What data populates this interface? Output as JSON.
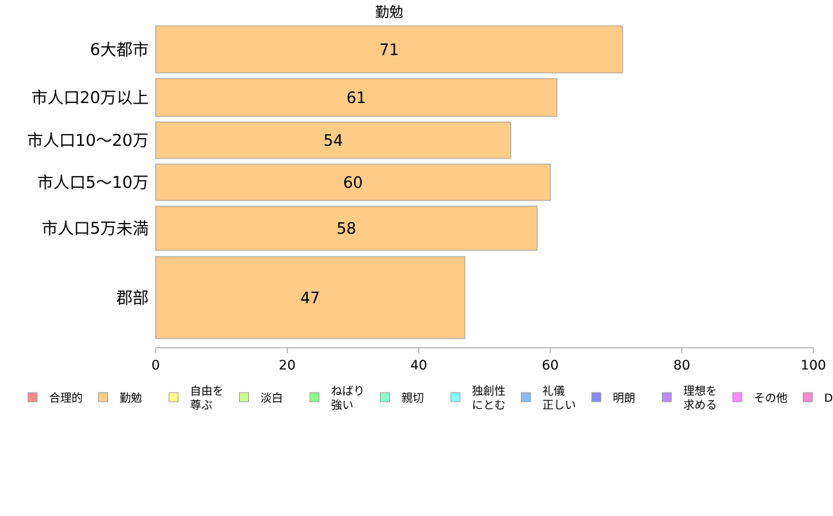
{
  "chart_data": {
    "type": "bar",
    "orientation": "horizontal",
    "title": "勤勉",
    "categories": [
      "6大都市",
      "市人口20万以上",
      "市人口10〜20万",
      "市人口5〜10万",
      "市人口5万未満",
      "郡部"
    ],
    "values": [
      71,
      61,
      54,
      60,
      58,
      47
    ],
    "xlim": [
      0,
      100
    ],
    "xticks": [
      0,
      20,
      40,
      60,
      80,
      100
    ],
    "bar_color": "#FFCC88",
    "bar_stroke": "#999999",
    "grid": false,
    "legend_position": "bottom",
    "legend": [
      {
        "lines": [
          "合理的"
        ],
        "color": "#FF8888"
      },
      {
        "lines": [
          "勤勉"
        ],
        "color": "#FFCC88"
      },
      {
        "lines": [
          "自由を",
          "尊ぶ"
        ],
        "color": "#FFFF88"
      },
      {
        "lines": [
          "淡白"
        ],
        "color": "#CCFF88"
      },
      {
        "lines": [
          "ねばり",
          "強い"
        ],
        "color": "#88FF88"
      },
      {
        "lines": [
          "親切"
        ],
        "color": "#88FFCC"
      },
      {
        "lines": [
          "独創性",
          "にとむ"
        ],
        "color": "#88FFFF"
      },
      {
        "lines": [
          "礼儀",
          "正しい"
        ],
        "color": "#88BBFF"
      },
      {
        "lines": [
          "明朗"
        ],
        "color": "#8888FF"
      },
      {
        "lines": [
          "理想を",
          "求める"
        ],
        "color": "#BB88FF"
      },
      {
        "lines": [
          "その他"
        ],
        "color": "#FF88FF"
      },
      {
        "lines": [
          "D"
        ],
        "color": "#FF88CC"
      }
    ]
  }
}
